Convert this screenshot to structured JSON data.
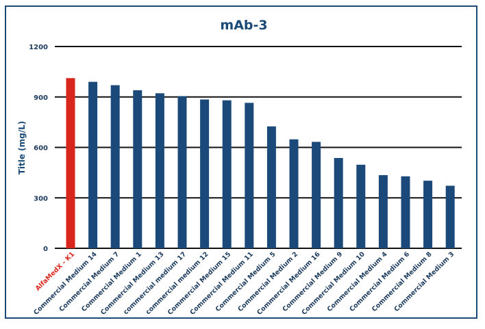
{
  "chart_data": {
    "type": "bar",
    "title": "mAb-3",
    "ylabel": "Title (mg/L)",
    "xlabel": "",
    "ylim": [
      0,
      1200
    ],
    "yticks": [
      0,
      300,
      600,
      900,
      1200
    ],
    "grid": true,
    "categories": [
      "AlfaMedX - K1",
      "Commercial Medium 14",
      "Commercial Medium 7",
      "Commercial Medium 1",
      "Commercial Medium 13",
      "commercial medium 17",
      "commercial medium 12",
      "Commercial Medium 15",
      "Commercial Medium 11",
      "Commercial Medium 5",
      "Commercial Medium 2",
      "Commercial Medium 16",
      "Commercial Medium 9",
      "Commercial Medium 10",
      "Commercial Medium 4",
      "Commercial Medium 6",
      "Commercial Medium 8",
      "Commercial Medium 3"
    ],
    "values": [
      1012,
      990,
      970,
      940,
      922,
      905,
      885,
      880,
      865,
      725,
      648,
      633,
      537,
      497,
      435,
      428,
      402,
      372
    ],
    "highlight_index": 0,
    "colors": {
      "highlight": "#d9261c",
      "bar": "#1b4a7a",
      "title": "#1b4a76",
      "axis_text": "#1b3a5c",
      "grid": "#111111",
      "frame": "#1b4a76"
    }
  }
}
